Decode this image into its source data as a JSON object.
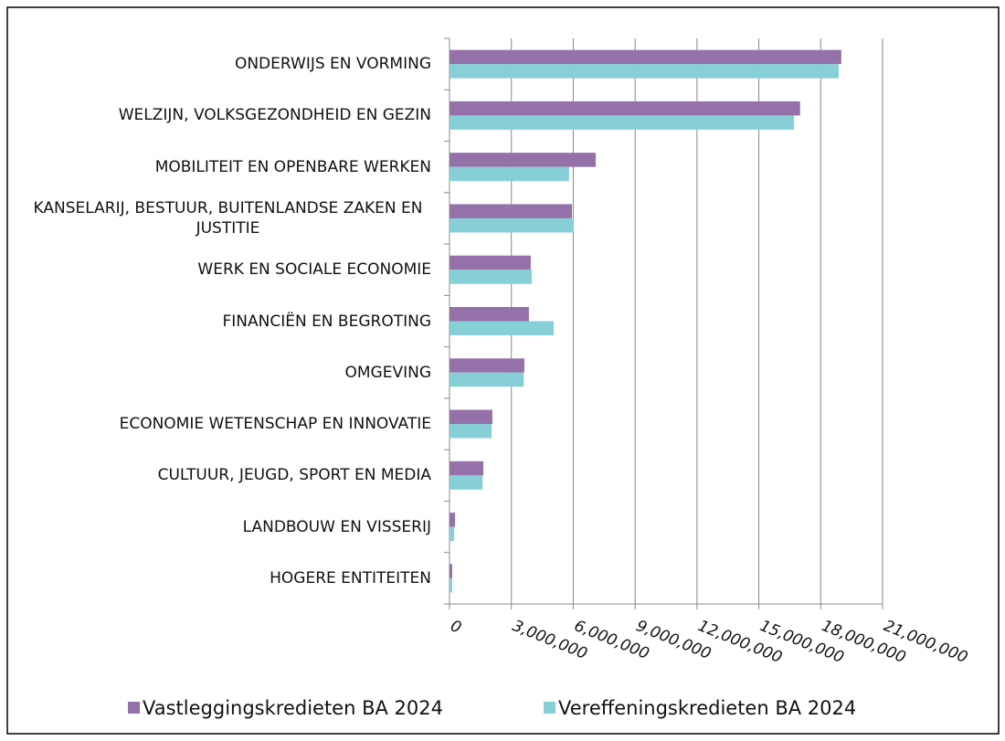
{
  "chart_data": {
    "type": "barh",
    "categories": [
      "ONDERWIJS EN VORMING",
      "WELZIJN, VOLKSGEZONDHEID EN GEZIN",
      "MOBILITEIT EN OPENBARE WERKEN",
      "KANSELARIJ, BESTUUR, BUITENLANDSE ZAKEN EN JUSTITIE",
      "WERK EN SOCIALE ECONOMIE",
      "FINANCIËN EN BEGROTING",
      "OMGEVING",
      "ECONOMIE WETENSCHAP EN INNOVATIE",
      "CULTUUR, JEUGD, SPORT EN MEDIA",
      "LANDBOUW EN VISSERIJ",
      "HOGERE ENTITEITEN"
    ],
    "series": [
      {
        "name": "Vastleggingskredieten BA 2024",
        "color": "#9471a9",
        "values": [
          19000000,
          17000000,
          7090000,
          5940000,
          3940000,
          3850000,
          3630000,
          2080000,
          1640000,
          270000,
          130000
        ]
      },
      {
        "name": "Vereffeningskredieten BA 2024",
        "color": "#86cfd6",
        "values": [
          18870000,
          16700000,
          5800000,
          6030000,
          3990000,
          5050000,
          3600000,
          2040000,
          1600000,
          220000,
          130000
        ]
      }
    ],
    "xlim": [
      0,
      21000000
    ],
    "xticks": [
      0,
      {
        "value": 3000000,
        "label": "3,000,000"
      },
      {
        "value": 6000000,
        "label": "6,000,000"
      },
      {
        "value": 9000000,
        "label": "9,000,000"
      },
      {
        "value": 12000000,
        "label": "12,000,000"
      },
      {
        "value": 15000000,
        "label": "15,000,000"
      },
      {
        "value": 18000000,
        "label": "18,000,000"
      },
      {
        "value": 21000000,
        "label": "21,000,000"
      }
    ],
    "grid": true,
    "legend": "bottom"
  }
}
